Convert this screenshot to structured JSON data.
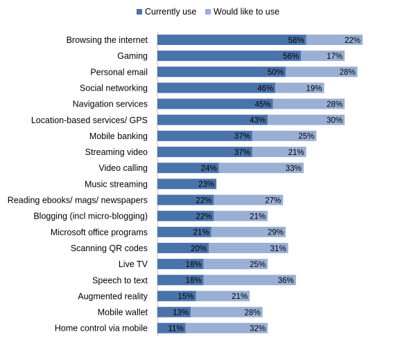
{
  "chart_data": {
    "type": "bar",
    "orientation": "horizontal",
    "stacked": true,
    "legend_position": "top",
    "grid": false,
    "categories": [
      "Browsing the internet",
      "Gaming",
      "Personal email",
      "Social networking",
      "Navigation services",
      "Location-based services/ GPS",
      "Mobile banking",
      "Streaming video",
      "Video calling",
      "Music streaming",
      "Reading ebooks/ mags/ newspapers",
      "Blogging (incl micro-blogging)",
      "Microsoft office programs",
      "Scanning QR codes",
      "Live TV",
      "Speech to text",
      "Augmented reality",
      "Mobile wallet",
      "Home control via mobile"
    ],
    "series": [
      {
        "name": "Currently use",
        "color": "#4a73a9",
        "values": [
          58,
          56,
          50,
          46,
          45,
          43,
          37,
          37,
          24,
          23,
          22,
          22,
          21,
          20,
          18,
          18,
          15,
          13,
          11
        ],
        "labels": [
          "58%",
          "56%",
          "50%",
          "46%",
          "45%",
          "43%",
          "37%",
          "37%",
          "24%",
          "23%",
          "22%",
          "22%",
          "21%",
          "20%",
          "18%",
          "18%",
          "15%",
          "13%",
          "11%"
        ]
      },
      {
        "name": "Would like to use",
        "color": "#9aafd4",
        "values": [
          22,
          17,
          28,
          19,
          28,
          30,
          25,
          21,
          33,
          null,
          27,
          21,
          29,
          31,
          25,
          36,
          21,
          28,
          32
        ],
        "labels": [
          "22%",
          "17%",
          "28%",
          "19%",
          "28%",
          "30%",
          "25%",
          "21%",
          "33%",
          "",
          "27%",
          "21%",
          "29%",
          "31%",
          "25%",
          "36%",
          "21%",
          "28%",
          "32%"
        ]
      }
    ]
  }
}
